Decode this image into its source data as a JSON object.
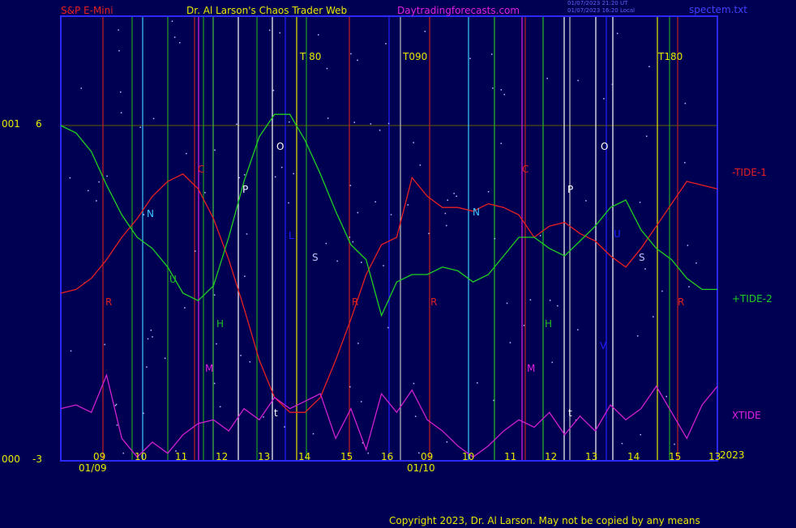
{
  "header": {
    "symbol": "S&P E-Mini",
    "author": "Dr. Al Larson's Chaos Trader Web",
    "site": "Daytradingforecasts.com",
    "stamp1": "01/07/2023 21:20 UT",
    "stamp2": "01/07/2023 16:20 Local",
    "file": "spectem.txt"
  },
  "yaxis": {
    "top_code": "001",
    "top_val": "6",
    "bot_code": "000",
    "bot_val": "-3"
  },
  "year": "2023",
  "copyright": "Copyright 2023, Dr. Al Larson. May not be copied by any means",
  "colors": {
    "background": "#000052",
    "frame": "#2a2aff",
    "tide1": "#e82020",
    "tide2": "#20d020",
    "xtide": "#d020d0",
    "text": "#e0e000"
  },
  "chart_data": {
    "type": "line",
    "ylim": [
      -3,
      6
    ],
    "x_day_labels": [
      "09",
      "10",
      "11",
      "12",
      "13",
      "14",
      "15",
      "16",
      "09",
      "10",
      "11",
      "12",
      "13",
      "14",
      "15",
      "13"
    ],
    "x_date_labels": [
      "01/09",
      "01/10"
    ],
    "series": [
      {
        "name": "-TIDE-1",
        "values": [
          1.5,
          1.6,
          1.9,
          2.4,
          3.0,
          3.5,
          4.1,
          4.5,
          4.7,
          4.3,
          3.5,
          2.4,
          1.1,
          -0.3,
          -1.3,
          -1.7,
          -1.7,
          -1.3,
          -0.3,
          0.8,
          2.0,
          2.8,
          3.0,
          4.6,
          4.1,
          3.8,
          3.8,
          3.7,
          3.9,
          3.8,
          3.6,
          3.0,
          3.3,
          3.4,
          3.1,
          2.9,
          2.5,
          2.2,
          2.7,
          3.3,
          3.9,
          4.5,
          4.4,
          4.3
        ]
      },
      {
        "name": "+TIDE-2",
        "values": [
          6.0,
          5.8,
          5.3,
          4.4,
          3.6,
          3.0,
          2.7,
          2.2,
          1.5,
          1.3,
          1.7,
          3.0,
          4.5,
          5.7,
          6.3,
          6.3,
          5.6,
          4.7,
          3.7,
          2.8,
          2.4,
          0.9,
          1.8,
          2.0,
          2.0,
          2.2,
          2.1,
          1.8,
          2.0,
          2.5,
          3.0,
          3.0,
          2.7,
          2.5,
          2.9,
          3.3,
          3.8,
          4.0,
          3.2,
          2.7,
          2.4,
          1.9,
          1.6,
          1.6
        ]
      },
      {
        "name": "XTIDE",
        "values": [
          -1.6,
          -1.5,
          -1.7,
          -0.7,
          -2.4,
          -2.9,
          -2.5,
          -2.8,
          -2.3,
          -2.0,
          -1.9,
          -2.2,
          -1.6,
          -1.9,
          -1.3,
          -1.6,
          -1.4,
          -1.2,
          -2.4,
          -1.6,
          -2.7,
          -1.2,
          -1.7,
          -1.1,
          -1.9,
          -2.2,
          -2.6,
          -2.9,
          -2.6,
          -2.2,
          -1.9,
          -2.1,
          -1.7,
          -2.3,
          -1.8,
          -2.2,
          -1.5,
          -1.9,
          -1.6,
          -1.0,
          -1.7,
          -2.4,
          -1.5,
          -1.0
        ]
      }
    ],
    "series_labels": [
      "-TIDE-1",
      "+TIDE-2",
      "XTIDE"
    ],
    "turn_labels": [
      "T 80",
      "T090",
      "T180"
    ],
    "planet_letters": [
      "R",
      "N",
      "C",
      "U",
      "M",
      "H",
      "P",
      "O",
      "L",
      "S",
      "t",
      "R",
      "R",
      "N",
      "C",
      "M",
      "H",
      "P",
      "t",
      "O",
      "U",
      "V",
      "S",
      "R"
    ]
  }
}
